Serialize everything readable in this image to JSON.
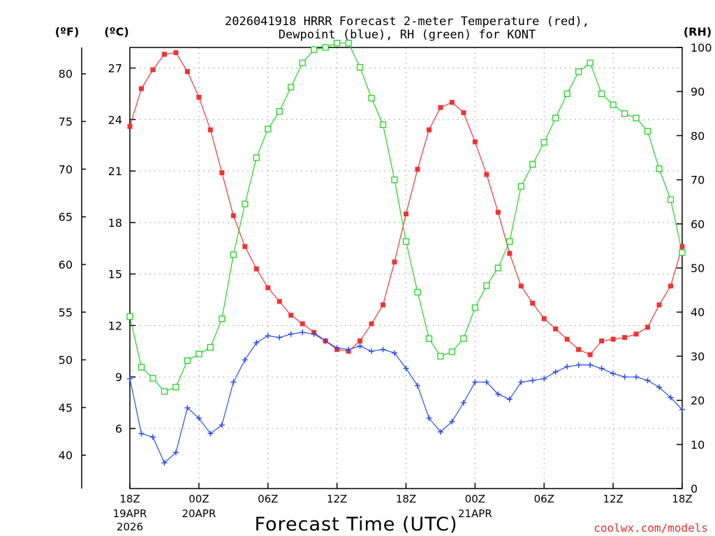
{
  "chart_data": {
    "type": "line",
    "title_line1": "2026041918 HRRR Forecast 2-meter Temperature (red),",
    "title_line2": "Dewpoint (blue), RH (green) for KONT",
    "xlabel": "Forecast Time (UTC)",
    "credit": "coolwx.com/models",
    "units": {
      "f": "(ºF)",
      "c": "(ºC)",
      "rh": "(RH)"
    },
    "x_hours": [
      0,
      1,
      2,
      3,
      4,
      5,
      6,
      7,
      8,
      9,
      10,
      11,
      12,
      13,
      14,
      15,
      16,
      17,
      18,
      19,
      20,
      21,
      22,
      23,
      24,
      25,
      26,
      27,
      28,
      29,
      30,
      31,
      32,
      33,
      34,
      35,
      36,
      37,
      38,
      39,
      40,
      41,
      42,
      43,
      44,
      45,
      46,
      47,
      48
    ],
    "xlim": [
      0,
      48
    ],
    "x_ticks": [
      {
        "hour": 0,
        "label": "18Z",
        "date1": "19APR",
        "date2": "2026"
      },
      {
        "hour": 6,
        "label": "00Z",
        "date1": "20APR",
        "date2": ""
      },
      {
        "hour": 12,
        "label": "06Z",
        "date1": "",
        "date2": ""
      },
      {
        "hour": 18,
        "label": "12Z",
        "date1": "",
        "date2": ""
      },
      {
        "hour": 24,
        "label": "18Z",
        "date1": "",
        "date2": ""
      },
      {
        "hour": 30,
        "label": "00Z",
        "date1": "21APR",
        "date2": ""
      },
      {
        "hour": 36,
        "label": "06Z",
        "date1": "",
        "date2": ""
      },
      {
        "hour": 42,
        "label": "12Z",
        "date1": "",
        "date2": ""
      },
      {
        "hour": 48,
        "label": "18Z",
        "date1": "",
        "date2": ""
      }
    ],
    "c_axis": {
      "lim": [
        2.5,
        28.2
      ],
      "ticks": [
        "6",
        "9",
        "12",
        "15",
        "18",
        "21",
        "24",
        "27"
      ]
    },
    "f_axis": {
      "ticks": [
        "40",
        "45",
        "50",
        "55",
        "60",
        "65",
        "70",
        "75",
        "80"
      ]
    },
    "rh_axis": {
      "lim": [
        0,
        100
      ],
      "ticks": [
        "0",
        "10",
        "20",
        "30",
        "40",
        "50",
        "60",
        "70",
        "80",
        "90",
        "100"
      ]
    },
    "series": [
      {
        "name": "Temperature",
        "axis": "c",
        "color": "#f03232",
        "marker": "filled-square",
        "values": [
          23.6,
          25.8,
          26.9,
          27.8,
          27.9,
          26.8,
          25.3,
          23.4,
          20.9,
          18.4,
          16.6,
          15.3,
          14.2,
          13.4,
          12.6,
          12.1,
          11.6,
          11.1,
          10.6,
          10.5,
          11.1,
          12.1,
          13.2,
          15.7,
          18.5,
          21.1,
          23.4,
          24.7,
          25.0,
          24.4,
          22.7,
          20.8,
          18.6,
          16.2,
          14.3,
          13.3,
          12.4,
          11.8,
          11.2,
          10.6,
          10.3,
          11.1,
          11.2,
          11.3,
          11.5,
          11.9,
          13.2,
          14.3,
          16.6
        ]
      },
      {
        "name": "Dewpoint",
        "axis": "c",
        "color": "#2a4de6",
        "marker": "plus",
        "values": [
          8.9,
          5.7,
          5.5,
          4.0,
          4.6,
          7.2,
          6.6,
          5.7,
          6.2,
          8.7,
          10.0,
          11.0,
          11.4,
          11.3,
          11.5,
          11.6,
          11.5,
          11.1,
          10.7,
          10.6,
          10.8,
          10.5,
          10.6,
          10.4,
          9.5,
          8.5,
          6.6,
          5.8,
          6.4,
          7.5,
          8.7,
          8.7,
          8.0,
          7.7,
          8.7,
          8.8,
          8.9,
          9.3,
          9.6,
          9.7,
          9.7,
          9.5,
          9.2,
          9.0,
          9.0,
          8.8,
          8.4,
          7.8,
          7.1
        ]
      },
      {
        "name": "RH",
        "axis": "rh",
        "color": "#22d222",
        "marker": "open-square",
        "values": [
          39,
          27.5,
          25,
          22,
          23,
          29,
          30.5,
          32,
          38.5,
          53,
          64.5,
          75,
          81.5,
          85.5,
          91,
          96.5,
          99.5,
          100,
          101,
          101,
          95.5,
          88.5,
          82.5,
          70,
          56,
          44.5,
          34,
          30,
          31,
          34,
          41,
          46,
          50,
          56,
          68.5,
          73.5,
          78.5,
          84,
          89.5,
          94.5,
          96.5,
          89.5,
          87,
          85,
          84,
          81,
          72.5,
          65.5,
          53.5
        ]
      }
    ]
  }
}
